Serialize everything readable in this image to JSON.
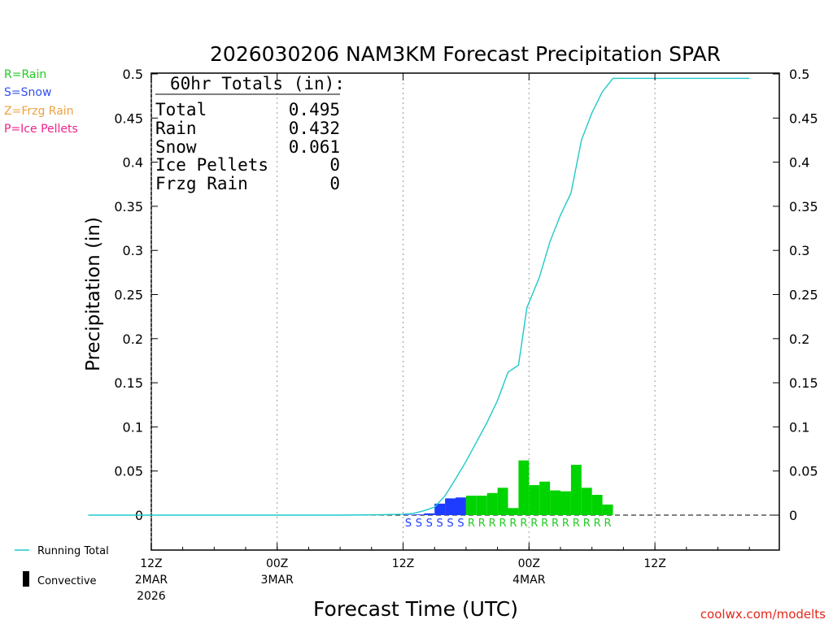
{
  "chart_data": {
    "type": "bar",
    "title": "2026030206 NAM3KM Forecast Precipitation SPAR",
    "xlabel": "Forecast Time (UTC)",
    "ylabel": "Precipitation (in)",
    "ylim": [
      -0.04,
      0.5
    ],
    "yticks": [
      "0.5",
      "0.45",
      "0.4",
      "0.35",
      "0.3",
      "0.25",
      "0.2",
      "0.15",
      "0.1",
      "0.05",
      "0"
    ],
    "ytick_values": [
      0.5,
      0.45,
      0.4,
      0.35,
      0.3,
      0.25,
      0.2,
      0.15,
      0.1,
      0.05,
      0
    ],
    "x_hours_range": [
      0,
      63
    ],
    "x_ticks": [
      {
        "hour": 6,
        "line1": "12Z",
        "line2": "2MAR",
        "line3": "2026"
      },
      {
        "hour": 18,
        "line1": "00Z",
        "line2": "3MAR",
        "line3": ""
      },
      {
        "hour": 30,
        "line1": "12Z",
        "line2": "",
        "line3": ""
      },
      {
        "hour": 42,
        "line1": "00Z",
        "line2": "4MAR",
        "line3": ""
      },
      {
        "hour": 54,
        "line1": "12Z",
        "line2": "",
        "line3": ""
      }
    ],
    "colors": {
      "rain": "#00d400",
      "snow": "#1e3cff",
      "running_total": "#20c8c8",
      "convective": "#000000"
    },
    "precip_bars": [
      {
        "hour": 30.5,
        "value": 0.0005,
        "type": "snow"
      },
      {
        "hour": 31.5,
        "value": 0.0008,
        "type": "snow"
      },
      {
        "hour": 32.5,
        "value": 0.002,
        "type": "snow"
      },
      {
        "hour": 33.5,
        "value": 0.013,
        "type": "snow"
      },
      {
        "hour": 34.5,
        "value": 0.019,
        "type": "snow"
      },
      {
        "hour": 35.5,
        "value": 0.02,
        "type": "snow"
      },
      {
        "hour": 36.5,
        "value": 0.022,
        "type": "rain"
      },
      {
        "hour": 37.5,
        "value": 0.022,
        "type": "rain"
      },
      {
        "hour": 38.5,
        "value": 0.025,
        "type": "rain"
      },
      {
        "hour": 39.5,
        "value": 0.031,
        "type": "rain"
      },
      {
        "hour": 40.5,
        "value": 0.008,
        "type": "rain"
      },
      {
        "hour": 41.5,
        "value": 0.062,
        "type": "rain"
      },
      {
        "hour": 42.5,
        "value": 0.034,
        "type": "rain"
      },
      {
        "hour": 43.5,
        "value": 0.038,
        "type": "rain"
      },
      {
        "hour": 44.5,
        "value": 0.028,
        "type": "rain"
      },
      {
        "hour": 45.5,
        "value": 0.027,
        "type": "rain"
      },
      {
        "hour": 46.5,
        "value": 0.057,
        "type": "rain"
      },
      {
        "hour": 47.5,
        "value": 0.031,
        "type": "rain"
      },
      {
        "hour": 48.5,
        "value": 0.023,
        "type": "rain"
      },
      {
        "hour": 49.5,
        "value": 0.012,
        "type": "rain"
      }
    ],
    "type_labels": [
      {
        "hour": 30.5,
        "label": "S",
        "type": "snow"
      },
      {
        "hour": 31.5,
        "label": "S",
        "type": "snow"
      },
      {
        "hour": 32.5,
        "label": "S",
        "type": "snow"
      },
      {
        "hour": 33.5,
        "label": "S",
        "type": "snow"
      },
      {
        "hour": 34.5,
        "label": "S",
        "type": "snow"
      },
      {
        "hour": 35.5,
        "label": "S",
        "type": "snow"
      },
      {
        "hour": 36.5,
        "label": "R",
        "type": "rain"
      },
      {
        "hour": 37.5,
        "label": "R",
        "type": "rain"
      },
      {
        "hour": 38.5,
        "label": "R",
        "type": "rain"
      },
      {
        "hour": 39.5,
        "label": "R",
        "type": "rain"
      },
      {
        "hour": 40.5,
        "label": "R",
        "type": "rain"
      },
      {
        "hour": 41.5,
        "label": "R",
        "type": "rain"
      },
      {
        "hour": 42.5,
        "label": "R",
        "type": "rain"
      },
      {
        "hour": 43.5,
        "label": "R",
        "type": "rain"
      },
      {
        "hour": 44.5,
        "label": "R",
        "type": "rain"
      },
      {
        "hour": 45.5,
        "label": "R",
        "type": "rain"
      },
      {
        "hour": 46.5,
        "label": "R",
        "type": "rain"
      },
      {
        "hour": 47.5,
        "label": "R",
        "type": "rain"
      },
      {
        "hour": 48.5,
        "label": "R",
        "type": "rain"
      },
      {
        "hour": 49.5,
        "label": "R",
        "type": "rain"
      }
    ],
    "running_total": [
      {
        "hour": 0,
        "value": 0
      },
      {
        "hour": 24,
        "value": 0
      },
      {
        "hour": 28,
        "value": 0.0005
      },
      {
        "hour": 30,
        "value": 0.001
      },
      {
        "hour": 31,
        "value": 0.002
      },
      {
        "hour": 32,
        "value": 0.005
      },
      {
        "hour": 33,
        "value": 0.009
      },
      {
        "hour": 34,
        "value": 0.022
      },
      {
        "hour": 35,
        "value": 0.041
      },
      {
        "hour": 36,
        "value": 0.061
      },
      {
        "hour": 37,
        "value": 0.083
      },
      {
        "hour": 38,
        "value": 0.105
      },
      {
        "hour": 39,
        "value": 0.13
      },
      {
        "hour": 40,
        "value": 0.162
      },
      {
        "hour": 41,
        "value": 0.17
      },
      {
        "hour": 41.8,
        "value": 0.235
      },
      {
        "hour": 43,
        "value": 0.27
      },
      {
        "hour": 44,
        "value": 0.31
      },
      {
        "hour": 45,
        "value": 0.34
      },
      {
        "hour": 46,
        "value": 0.365
      },
      {
        "hour": 47,
        "value": 0.425
      },
      {
        "hour": 48,
        "value": 0.456
      },
      {
        "hour": 49,
        "value": 0.48
      },
      {
        "hour": 50,
        "value": 0.495
      },
      {
        "hour": 63,
        "value": 0.495
      }
    ],
    "totals_box": {
      "header": "60hr Totals (in):",
      "rows": [
        {
          "label": "Total",
          "value": "0.495"
        },
        {
          "label": "Rain",
          "value": "0.432"
        },
        {
          "label": "Snow",
          "value": "0.061"
        },
        {
          "label": "Ice Pellets",
          "value": "0"
        },
        {
          "label": "Frzg Rain",
          "value": "0"
        }
      ]
    },
    "type_legend": [
      {
        "text": "R=Rain",
        "color": "#22cc22"
      },
      {
        "text": "S=Snow",
        "color": "#3350ee"
      },
      {
        "text": "Z=Frzg Rain",
        "color": "#f0a040"
      },
      {
        "text": "P=Ice Pellets",
        "color": "#ee2288"
      }
    ],
    "series_legend": {
      "running_total": "Running Total",
      "convective": "Convective"
    },
    "credit": "coolwx.com/modelts"
  }
}
